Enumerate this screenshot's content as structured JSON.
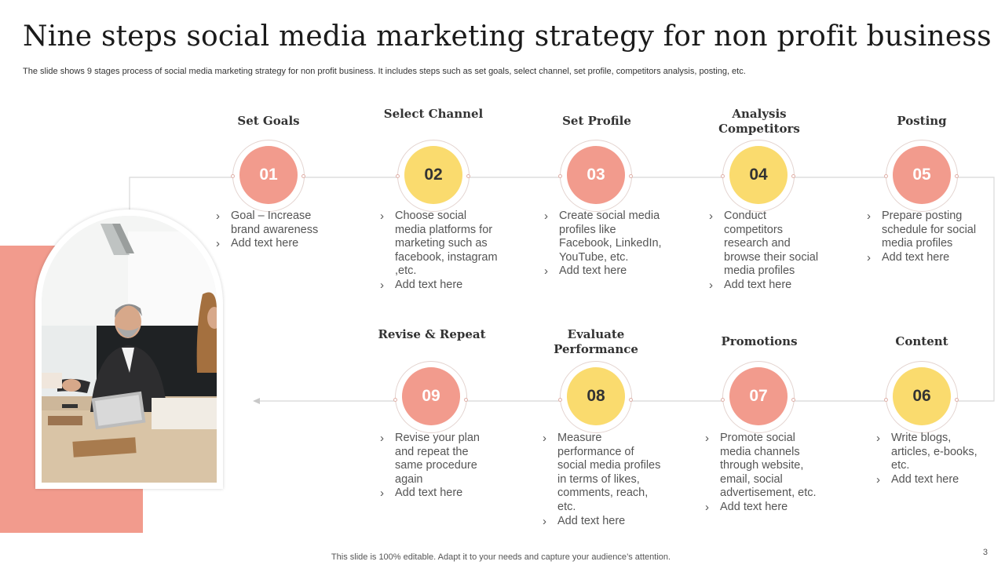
{
  "title": "Nine steps social media marketing strategy for non profit business",
  "subtitle": "The slide shows 9 stages process of social media marketing strategy for non profit business. It includes steps such as set goals, select channel, set profile, competitors analysis, posting, etc.",
  "footer": "This slide is 100% editable. Adapt it to your needs and capture your audience’s attention.",
  "page_number": "3",
  "bullet_glyph": "›",
  "colors": {
    "pink": "#f29b8d",
    "yellow": "#fadb6e",
    "title": "#1a1a1a"
  },
  "steps": [
    {
      "number": "01",
      "title": "Set Goals",
      "color": "pink",
      "bullets": [
        "Goal – Increase brand awareness",
        "Add text here"
      ]
    },
    {
      "number": "02",
      "title": "Select Channel",
      "color": "yellow",
      "bullets": [
        "Choose social media platforms for marketing such as facebook, instagram ,etc.",
        "Add text here"
      ]
    },
    {
      "number": "03",
      "title": "Set Profile",
      "color": "pink",
      "bullets": [
        "Create social media profiles like Facebook, LinkedIn, YouTube, etc.",
        "Add text here"
      ]
    },
    {
      "number": "04",
      "title": "Analysis Competitors",
      "color": "yellow",
      "bullets": [
        "Conduct competitors research and browse their social media profiles",
        "Add text here"
      ]
    },
    {
      "number": "05",
      "title": "Posting",
      "color": "pink",
      "bullets": [
        "Prepare posting schedule for social media profiles",
        "Add text here"
      ]
    },
    {
      "number": "06",
      "title": "Content",
      "color": "yellow",
      "bullets": [
        "Write blogs, articles, e-books, etc.",
        "Add text here"
      ]
    },
    {
      "number": "07",
      "title": "Promotions",
      "color": "pink",
      "bullets": [
        "Promote social media channels through website, email, social advertisement, etc.",
        "Add text here"
      ]
    },
    {
      "number": "08",
      "title": "Evaluate Performance",
      "color": "yellow",
      "bullets": [
        "Measure performance of social media profiles in terms of likes, comments, reach, etc.",
        "Add text here"
      ]
    },
    {
      "number": "09",
      "title": "Revise & Repeat",
      "color": "pink",
      "bullets": [
        "Revise your plan and repeat the same procedure again",
        "Add text here"
      ]
    }
  ]
}
